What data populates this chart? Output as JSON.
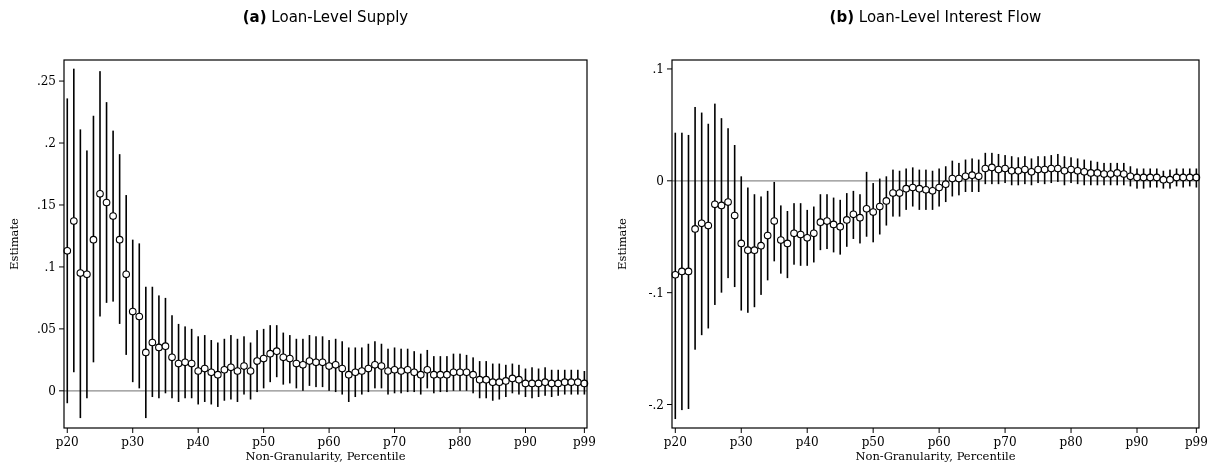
{
  "chart_data": [
    {
      "type": "scatter",
      "title": "(a) Loan-Level Supply",
      "xlabel": "Non-Granularity, Percentile",
      "ylabel": "Estimate",
      "ylim": [
        -0.03,
        0.267
      ],
      "categories": [
        "p20",
        null,
        null,
        null,
        null,
        null,
        null,
        null,
        null,
        null,
        "p30",
        null,
        null,
        null,
        null,
        null,
        null,
        null,
        null,
        null,
        "p40",
        null,
        null,
        null,
        null,
        null,
        null,
        null,
        null,
        null,
        "p50",
        null,
        null,
        null,
        null,
        null,
        null,
        null,
        null,
        null,
        "p60",
        null,
        null,
        null,
        null,
        null,
        null,
        null,
        null,
        null,
        "p70",
        null,
        null,
        null,
        null,
        null,
        null,
        null,
        null,
        null,
        "p80",
        null,
        null,
        null,
        null,
        null,
        null,
        null,
        null,
        null,
        "p90",
        null,
        null,
        null,
        null,
        null,
        null,
        null,
        null,
        "p99"
      ],
      "yticks": [
        {
          "value": 0,
          "label": "0"
        },
        {
          "value": 0.05,
          "label": ".05"
        },
        {
          "value": 0.1,
          "label": ".1"
        },
        {
          "value": 0.15,
          "label": ".15"
        },
        {
          "value": 0.2,
          "label": ".2"
        },
        {
          "value": 0.25,
          "label": ".25"
        }
      ],
      "grid": false,
      "marker": "circle",
      "ref_lines": [
        {
          "axis": "y",
          "value": 0,
          "color": "#8c8c8c"
        }
      ],
      "series": [
        {
          "color": "#000000",
          "values": [
            0.113,
            0.137,
            0.095,
            0.094,
            0.122,
            0.159,
            0.152,
            0.141,
            0.122,
            0.094,
            0.064,
            0.06,
            0.031,
            0.039,
            0.035,
            0.036,
            0.027,
            0.022,
            0.023,
            0.022,
            0.016,
            0.018,
            0.015,
            0.013,
            0.017,
            0.019,
            0.016,
            0.02,
            0.016,
            0.024,
            0.026,
            0.03,
            0.032,
            0.027,
            0.026,
            0.022,
            0.021,
            0.024,
            0.023,
            0.023,
            0.02,
            0.021,
            0.018,
            0.013,
            0.015,
            0.016,
            0.018,
            0.021,
            0.02,
            0.016,
            0.017,
            0.016,
            0.017,
            0.015,
            0.013,
            0.017,
            0.013,
            0.013,
            0.013,
            0.015,
            0.015,
            0.015,
            0.013,
            0.009,
            0.009,
            0.007,
            0.007,
            0.008,
            0.01,
            0.009,
            0.006,
            0.006,
            0.006,
            0.007,
            0.006,
            0.006,
            0.007,
            0.007,
            0.007,
            0.006
          ],
          "errors": [
            [
              -0.01,
              0.236
            ],
            [
              0.015,
              0.26
            ],
            [
              -0.022,
              0.211
            ],
            [
              -0.006,
              0.194
            ],
            [
              0.023,
              0.222
            ],
            [
              0.06,
              0.258
            ],
            [
              0.071,
              0.233
            ],
            [
              0.072,
              0.21
            ],
            [
              0.054,
              0.191
            ],
            [
              0.029,
              0.158
            ],
            [
              0.007,
              0.122
            ],
            [
              0.002,
              0.119
            ],
            [
              -0.022,
              0.084
            ],
            [
              -0.005,
              0.084
            ],
            [
              -0.006,
              0.077
            ],
            [
              -0.002,
              0.075
            ],
            [
              -0.006,
              0.061
            ],
            [
              -0.009,
              0.054
            ],
            [
              -0.006,
              0.052
            ],
            [
              -0.006,
              0.05
            ],
            [
              -0.011,
              0.044
            ],
            [
              -0.009,
              0.045
            ],
            [
              -0.011,
              0.041
            ],
            [
              -0.013,
              0.039
            ],
            [
              -0.008,
              0.042
            ],
            [
              -0.007,
              0.045
            ],
            [
              -0.009,
              0.042
            ],
            [
              -0.003,
              0.044
            ],
            [
              -0.007,
              0.039
            ],
            [
              -0.001,
              0.049
            ],
            [
              0.002,
              0.05
            ],
            [
              0.007,
              0.053
            ],
            [
              0.011,
              0.053
            ],
            [
              0.005,
              0.047
            ],
            [
              0.006,
              0.045
            ],
            [
              0.002,
              0.042
            ],
            [
              0.0,
              0.042
            ],
            [
              0.004,
              0.045
            ],
            [
              0.003,
              0.044
            ],
            [
              0.003,
              0.044
            ],
            [
              0.0,
              0.041
            ],
            [
              -0.001,
              0.042
            ],
            [
              -0.003,
              0.04
            ],
            [
              -0.009,
              0.035
            ],
            [
              -0.005,
              0.035
            ],
            [
              -0.003,
              0.035
            ],
            [
              -0.001,
              0.038
            ],
            [
              0.002,
              0.04
            ],
            [
              0.002,
              0.038
            ],
            [
              -0.003,
              0.034
            ],
            [
              -0.002,
              0.035
            ],
            [
              -0.002,
              0.034
            ],
            [
              -0.001,
              0.034
            ],
            [
              -0.001,
              0.032
            ],
            [
              -0.003,
              0.03
            ],
            [
              0.002,
              0.033
            ],
            [
              -0.002,
              0.028
            ],
            [
              -0.001,
              0.028
            ],
            [
              -0.001,
              0.028
            ],
            [
              0.0,
              0.03
            ],
            [
              0.0,
              0.03
            ],
            [
              0.0,
              0.029
            ],
            [
              -0.002,
              0.027
            ],
            [
              -0.006,
              0.024
            ],
            [
              -0.006,
              0.024
            ],
            [
              -0.008,
              0.022
            ],
            [
              -0.007,
              0.022
            ],
            [
              -0.005,
              0.021
            ],
            [
              -0.002,
              0.022
            ],
            [
              -0.003,
              0.021
            ],
            [
              -0.005,
              0.018
            ],
            [
              -0.006,
              0.019
            ],
            [
              -0.005,
              0.018
            ],
            [
              -0.004,
              0.019
            ],
            [
              -0.005,
              0.017
            ],
            [
              -0.004,
              0.017
            ],
            [
              -0.003,
              0.017
            ],
            [
              -0.003,
              0.017
            ],
            [
              -0.003,
              0.017
            ],
            [
              -0.003,
              0.016
            ]
          ]
        }
      ]
    },
    {
      "type": "scatter",
      "title": "(b) Loan-Level Interest Flow",
      "xlabel": "Non-Granularity, Percentile",
      "ylabel": "Estimate",
      "ylim": [
        -0.221,
        0.108
      ],
      "categories": [
        "p20",
        null,
        null,
        null,
        null,
        null,
        null,
        null,
        null,
        null,
        "p30",
        null,
        null,
        null,
        null,
        null,
        null,
        null,
        null,
        null,
        "p40",
        null,
        null,
        null,
        null,
        null,
        null,
        null,
        null,
        null,
        "p50",
        null,
        null,
        null,
        null,
        null,
        null,
        null,
        null,
        null,
        "p60",
        null,
        null,
        null,
        null,
        null,
        null,
        null,
        null,
        null,
        "p70",
        null,
        null,
        null,
        null,
        null,
        null,
        null,
        null,
        null,
        "p80",
        null,
        null,
        null,
        null,
        null,
        null,
        null,
        null,
        null,
        "p90",
        null,
        null,
        null,
        null,
        null,
        null,
        null,
        null,
        "p99"
      ],
      "yticks": [
        {
          "value": -0.2,
          "label": "-.2"
        },
        {
          "value": -0.1,
          "label": "-.1"
        },
        {
          "value": 0,
          "label": "0"
        },
        {
          "value": 0.1,
          "label": ".1"
        }
      ],
      "grid": false,
      "marker": "circle",
      "ref_lines": [
        {
          "axis": "y",
          "value": 0,
          "color": "#8c8c8c"
        }
      ],
      "series": [
        {
          "color": "#000000",
          "values": [
            -0.084,
            -0.081,
            -0.081,
            -0.043,
            -0.038,
            -0.04,
            -0.021,
            -0.022,
            -0.019,
            -0.031,
            -0.056,
            -0.062,
            -0.062,
            -0.058,
            -0.049,
            -0.036,
            -0.053,
            -0.056,
            -0.047,
            -0.048,
            -0.051,
            -0.047,
            -0.037,
            -0.036,
            -0.039,
            -0.041,
            -0.035,
            -0.03,
            -0.033,
            -0.025,
            -0.028,
            -0.023,
            -0.018,
            -0.011,
            -0.011,
            -0.007,
            -0.006,
            -0.007,
            -0.008,
            -0.009,
            -0.006,
            -0.003,
            0.002,
            0.002,
            0.004,
            0.005,
            0.004,
            0.011,
            0.012,
            0.01,
            0.011,
            0.009,
            0.009,
            0.01,
            0.008,
            0.01,
            0.01,
            0.011,
            0.011,
            0.009,
            0.01,
            0.009,
            0.008,
            0.007,
            0.007,
            0.006,
            0.006,
            0.007,
            0.006,
            0.004,
            0.003,
            0.003,
            0.003,
            0.003,
            0.001,
            0.001,
            0.003,
            0.003,
            0.003,
            0.003
          ],
          "errors": [
            [
              -0.213,
              0.043
            ],
            [
              -0.205,
              0.043
            ],
            [
              -0.204,
              0.041
            ],
            [
              -0.151,
              0.066
            ],
            [
              -0.138,
              0.061
            ],
            [
              -0.132,
              0.051
            ],
            [
              -0.111,
              0.069
            ],
            [
              -0.1,
              0.056
            ],
            [
              -0.087,
              0.047
            ],
            [
              -0.095,
              0.032
            ],
            [
              -0.116,
              0.004
            ],
            [
              -0.118,
              -0.006
            ],
            [
              -0.113,
              -0.012
            ],
            [
              -0.102,
              -0.014
            ],
            [
              -0.089,
              -0.009
            ],
            [
              -0.072,
              -0.001
            ],
            [
              -0.083,
              -0.022
            ],
            [
              -0.087,
              -0.027
            ],
            [
              -0.075,
              -0.02
            ],
            [
              -0.076,
              -0.02
            ],
            [
              -0.076,
              -0.026
            ],
            [
              -0.073,
              -0.023
            ],
            [
              -0.062,
              -0.012
            ],
            [
              -0.061,
              -0.012
            ],
            [
              -0.064,
              -0.015
            ],
            [
              -0.066,
              -0.017
            ],
            [
              -0.059,
              -0.011
            ],
            [
              -0.052,
              -0.009
            ],
            [
              -0.056,
              -0.012
            ],
            [
              -0.05,
              0.008
            ],
            [
              -0.055,
              -0.002
            ],
            [
              -0.048,
              0.002
            ],
            [
              -0.04,
              0.004
            ],
            [
              -0.032,
              0.01
            ],
            [
              -0.032,
              0.009
            ],
            [
              -0.026,
              0.011
            ],
            [
              -0.023,
              0.012
            ],
            [
              -0.026,
              0.01
            ],
            [
              -0.026,
              0.01
            ],
            [
              -0.026,
              0.009
            ],
            [
              -0.023,
              0.011
            ],
            [
              -0.019,
              0.013
            ],
            [
              -0.014,
              0.018
            ],
            [
              -0.013,
              0.016
            ],
            [
              -0.01,
              0.019
            ],
            [
              -0.01,
              0.02
            ],
            [
              -0.01,
              0.019
            ],
            [
              -0.003,
              0.025
            ],
            [
              -0.003,
              0.025
            ],
            [
              -0.003,
              0.024
            ],
            [
              -0.002,
              0.023
            ],
            [
              -0.004,
              0.022
            ],
            [
              -0.004,
              0.021
            ],
            [
              -0.003,
              0.022
            ],
            [
              -0.004,
              0.02
            ],
            [
              -0.002,
              0.022
            ],
            [
              -0.003,
              0.022
            ],
            [
              -0.002,
              0.023
            ],
            [
              -0.001,
              0.024
            ],
            [
              -0.004,
              0.022
            ],
            [
              -0.002,
              0.021
            ],
            [
              -0.003,
              0.02
            ],
            [
              -0.004,
              0.019
            ],
            [
              -0.004,
              0.018
            ],
            [
              -0.004,
              0.017
            ],
            [
              -0.004,
              0.016
            ],
            [
              -0.004,
              0.016
            ],
            [
              -0.004,
              0.016
            ],
            [
              -0.004,
              0.016
            ],
            [
              -0.005,
              0.013
            ],
            [
              -0.007,
              0.011
            ],
            [
              -0.007,
              0.011
            ],
            [
              -0.006,
              0.011
            ],
            [
              -0.006,
              0.011
            ],
            [
              -0.007,
              0.009
            ],
            [
              -0.007,
              0.01
            ],
            [
              -0.005,
              0.011
            ],
            [
              -0.006,
              0.011
            ],
            [
              -0.005,
              0.011
            ],
            [
              -0.006,
              0.011
            ]
          ]
        }
      ]
    }
  ]
}
